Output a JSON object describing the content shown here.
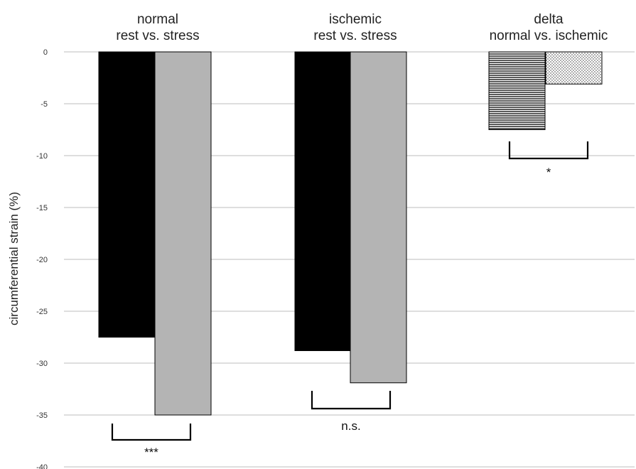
{
  "chart_data": {
    "type": "bar",
    "title": "",
    "xlabel": "",
    "ylabel": "circumferential strain (%)",
    "ylim": [
      -40,
      0
    ],
    "yticks": [
      0,
      -5,
      -10,
      -15,
      -20,
      -25,
      -30,
      -35,
      -40
    ],
    "grid": true,
    "legend": "none",
    "groups": [
      {
        "title_line1": "normal",
        "title_line2": "rest vs. stress",
        "bars": [
          {
            "value": -27.5,
            "fill": "black"
          },
          {
            "value": -35.0,
            "fill": "gray"
          }
        ],
        "significance": "***"
      },
      {
        "title_line1": "ischemic",
        "title_line2": "rest vs. stress",
        "bars": [
          {
            "value": -28.8,
            "fill": "black"
          },
          {
            "value": -31.9,
            "fill": "gray"
          }
        ],
        "significance": "n.s."
      },
      {
        "title_line1": "delta",
        "title_line2": "normal vs. ischemic",
        "bars": [
          {
            "value": -7.5,
            "fill": "horizontal-stripes"
          },
          {
            "value": -3.1,
            "fill": "dots"
          }
        ],
        "significance": "*"
      }
    ]
  },
  "colors": {
    "black_bar": "#000000",
    "gray_bar": "#b4b4b4",
    "grid": "#bdbdbd",
    "bracket": "#000000"
  }
}
